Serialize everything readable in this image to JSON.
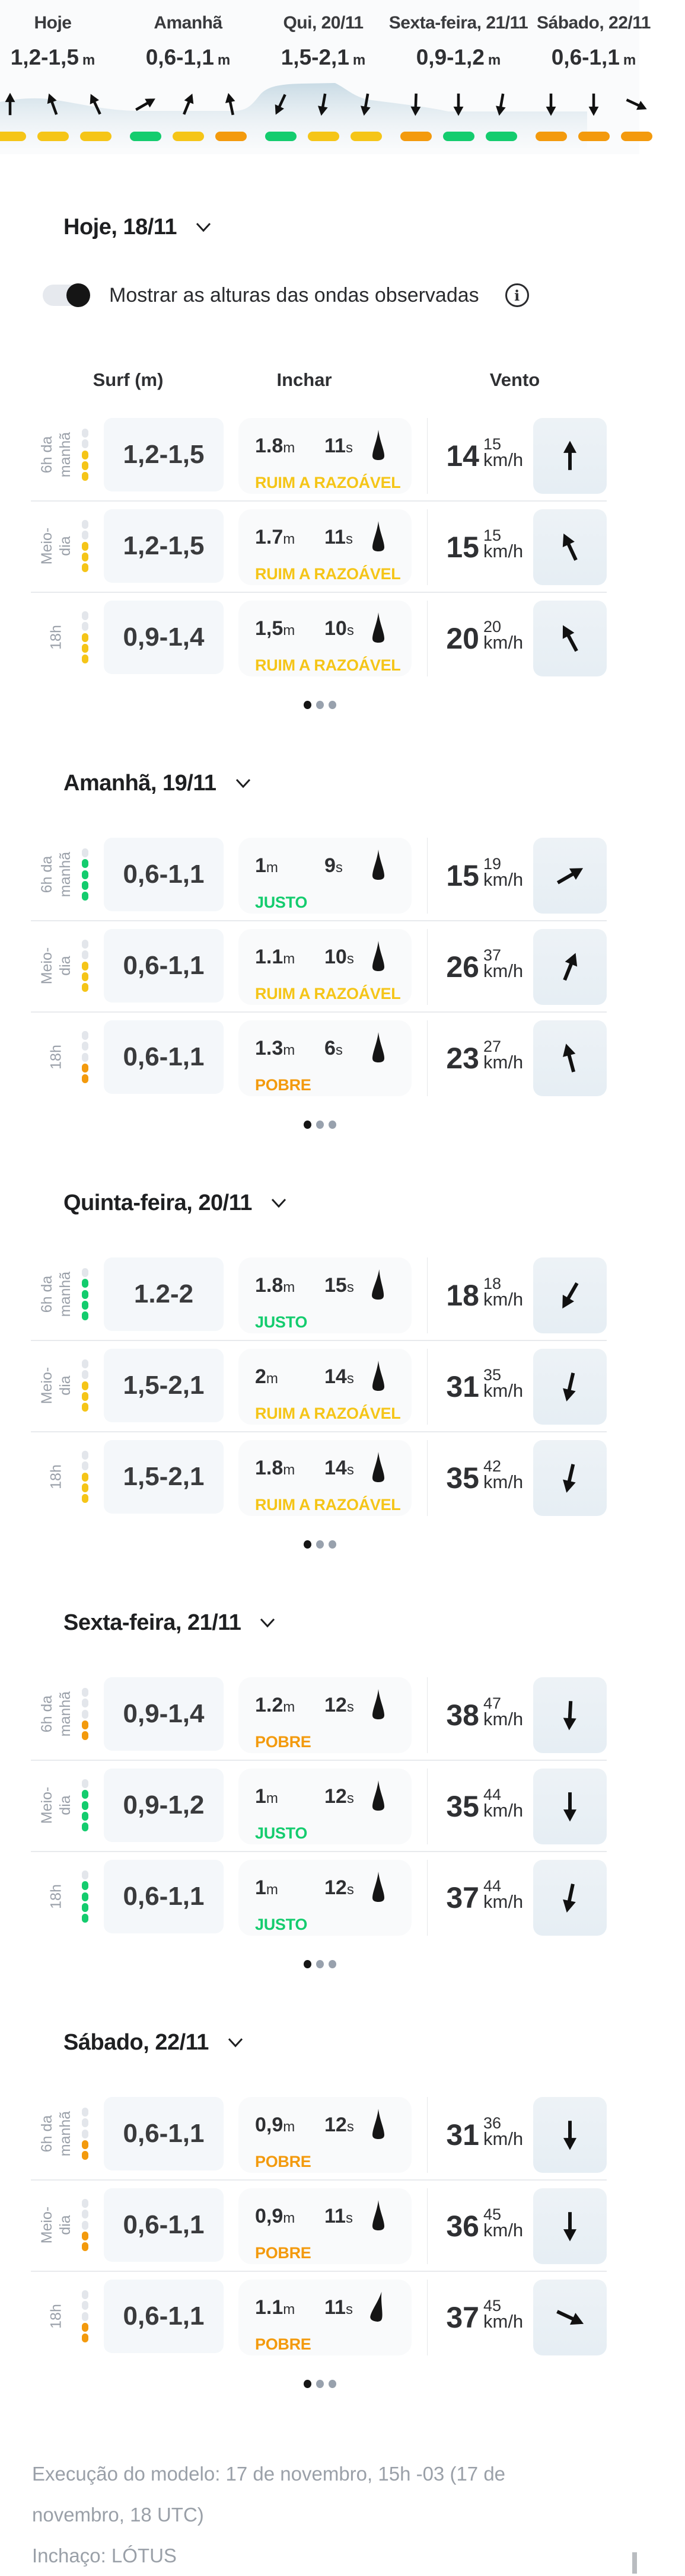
{
  "colors": {
    "good": "#14cc6e",
    "fair": "#ffcb1f",
    "poor": "#f7930e",
    "empty": "#e3e6eb"
  },
  "ratings": {
    "JUSTO": {
      "color": "#14cc6e",
      "level": 4
    },
    "RUIM A RAZOÁVEL": {
      "color": "#f5c518",
      "level": 3
    },
    "POBRE": {
      "color": "#f39a0d",
      "level": 2
    }
  },
  "strip": {
    "days": [
      {
        "label": "Hoje",
        "height": "1,2-1,5",
        "unit": "m",
        "ratings": [
          "RUIM A RAZOÁVEL",
          "RUIM A RAZOÁVEL",
          "RUIM A RAZOÁVEL"
        ],
        "wind_dirs": [
          0,
          -20,
          -25
        ]
      },
      {
        "label": "Amanhã",
        "height": "0,6-1,1",
        "unit": "m",
        "ratings": [
          "JUSTO",
          "RUIM A RAZOÁVEL",
          "POBRE"
        ],
        "wind_dirs": [
          60,
          22,
          -12
        ]
      },
      {
        "label": "Qui, 20/11",
        "height": "1,5-2,1",
        "unit": "m",
        "ratings": [
          "JUSTO",
          "RUIM A RAZOÁVEL",
          "RUIM A RAZOÁVEL"
        ],
        "wind_dirs": [
          205,
          190,
          190
        ]
      },
      {
        "label": "Sexta-feira, 21/11",
        "height": "0,9-1,2",
        "unit": "m",
        "ratings": [
          "POBRE",
          "JUSTO",
          "JUSTO"
        ],
        "wind_dirs": [
          182,
          180,
          190
        ]
      },
      {
        "label": "Sábado, 22/11",
        "height": "0,6-1,1",
        "unit": "m",
        "ratings": [
          "POBRE",
          "POBRE",
          "POBRE"
        ],
        "wind_dirs": [
          180,
          180,
          115
        ]
      }
    ]
  },
  "toggle": {
    "label": "Mostrar as alturas das ondas observadas",
    "on": true,
    "info_icon": "info-icon"
  },
  "columns": {
    "surf": "Surf (m)",
    "swell": "Inchar",
    "wind": "Vento"
  },
  "sections": [
    {
      "title": "Hoje, 18/11",
      "rows": [
        {
          "time": [
            "6h da",
            "manhã"
          ],
          "surf": "1,2-1,5",
          "swell_height": "1.8",
          "swell_period": "11",
          "swell_dir": 0,
          "rating": "RUIM A RAZOÁVEL",
          "wind_speed": "14",
          "wind_gust": "15",
          "wind_dir": 0
        },
        {
          "time": [
            "Meio-",
            "dia"
          ],
          "surf": "1,2-1,5",
          "swell_height": "1.7",
          "swell_period": "11",
          "swell_dir": 0,
          "rating": "RUIM A RAZOÁVEL",
          "wind_speed": "15",
          "wind_gust": "15",
          "wind_dir": -25
        },
        {
          "time": [
            "18h"
          ],
          "surf": "0,9-1,4",
          "swell_height": "1,5",
          "swell_period": "10",
          "swell_dir": 0,
          "rating": "RUIM A RAZOÁVEL",
          "wind_speed": "20",
          "wind_gust": "20",
          "wind_dir": -28
        }
      ]
    },
    {
      "title": "Amanhã, 19/11",
      "rows": [
        {
          "time": [
            "6h da",
            "manhã"
          ],
          "surf": "0,6-1,1",
          "swell_height": "1",
          "swell_period": "9",
          "swell_dir": 0,
          "rating": "JUSTO",
          "wind_speed": "15",
          "wind_gust": "19",
          "wind_dir": 60
        },
        {
          "time": [
            "Meio-",
            "dia"
          ],
          "surf": "0,6-1,1",
          "swell_height": "1.1",
          "swell_period": "10",
          "swell_dir": 0,
          "rating": "RUIM A RAZOÁVEL",
          "wind_speed": "26",
          "wind_gust": "37",
          "wind_dir": 22
        },
        {
          "time": [
            "18h"
          ],
          "surf": "0,6-1,1",
          "swell_height": "1.3",
          "swell_period": "6",
          "swell_dir": 0,
          "rating": "POBRE",
          "wind_speed": "23",
          "wind_gust": "27",
          "wind_dir": -15
        }
      ]
    },
    {
      "title": "Quinta-feira, 20/11",
      "rows": [
        {
          "time": [
            "6h da",
            "manhã"
          ],
          "surf": "1.2-2",
          "swell_height": "1.8",
          "swell_period": "15",
          "swell_dir": 3,
          "rating": "JUSTO",
          "wind_speed": "18",
          "wind_gust": "18",
          "wind_dir": 210
        },
        {
          "time": [
            "Meio-",
            "dia"
          ],
          "surf": "1,5-2,1",
          "swell_height": "2",
          "swell_period": "14",
          "swell_dir": 0,
          "rating": "RUIM A RAZOÁVEL",
          "wind_speed": "31",
          "wind_gust": "35",
          "wind_dir": 193
        },
        {
          "time": [
            "18h"
          ],
          "surf": "1,5-2,1",
          "swell_height": "1.8",
          "swell_period": "14",
          "swell_dir": 0,
          "rating": "RUIM A RAZOÁVEL",
          "wind_speed": "35",
          "wind_gust": "42",
          "wind_dir": 193
        }
      ]
    },
    {
      "title": "Sexta-feira, 21/11",
      "rows": [
        {
          "time": [
            "6h da",
            "manhã"
          ],
          "surf": "0,9-1,4",
          "swell_height": "1.2",
          "swell_period": "12",
          "swell_dir": 0,
          "rating": "POBRE",
          "wind_speed": "38",
          "wind_gust": "47",
          "wind_dir": 183
        },
        {
          "time": [
            "Meio-",
            "dia"
          ],
          "surf": "0,9-1,2",
          "swell_height": "1",
          "swell_period": "12",
          "swell_dir": 0,
          "rating": "JUSTO",
          "wind_speed": "35",
          "wind_gust": "44",
          "wind_dir": 180
        },
        {
          "time": [
            "18h"
          ],
          "surf": "0,6-1,1",
          "swell_height": "1",
          "swell_period": "12",
          "swell_dir": 0,
          "rating": "JUSTO",
          "wind_speed": "37",
          "wind_gust": "44",
          "wind_dir": 192
        }
      ]
    },
    {
      "title": "Sábado, 22/11",
      "rows": [
        {
          "time": [
            "6h da",
            "manhã"
          ],
          "surf": "0,6-1,1",
          "swell_height": "0,9",
          "swell_period": "12",
          "swell_dir": 0,
          "rating": "POBRE",
          "wind_speed": "31",
          "wind_gust": "36",
          "wind_dir": 180
        },
        {
          "time": [
            "Meio-",
            "dia"
          ],
          "surf": "0,6-1,1",
          "swell_height": "0,9",
          "swell_period": "11",
          "swell_dir": 0,
          "rating": "POBRE",
          "wind_speed": "36",
          "wind_gust": "45",
          "wind_dir": 180
        },
        {
          "time": [
            "18h"
          ],
          "surf": "0,6-1,1",
          "swell_height": "1.1",
          "swell_period": "11",
          "swell_dir": 12,
          "rating": "POBRE",
          "wind_speed": "37",
          "wind_gust": "45",
          "wind_dir": 115
        }
      ]
    }
  ],
  "units": {
    "height": "m",
    "period": "s",
    "wind": "km/h"
  },
  "pagination": {
    "count": 3,
    "active": 0
  },
  "footer": {
    "model_run": "Execução do modelo: 17 de novembro, 15h -03 (17 de novembro, 18 UTC)",
    "swell_model": "Inchaço: LÓTUS"
  }
}
